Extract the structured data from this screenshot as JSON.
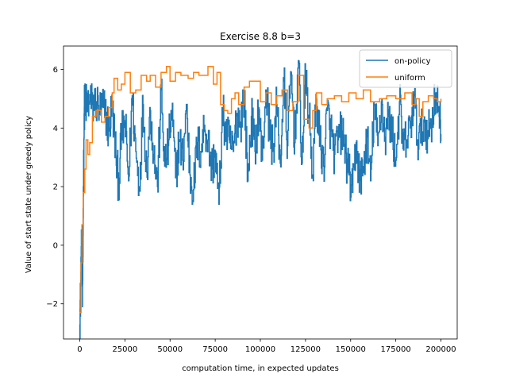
{
  "chart_data": {
    "type": "line",
    "title": "Exercise 8.8 b=3",
    "xlabel": "computation time, in expected updates",
    "ylabel": "Value of start state under greedy policy",
    "xlim": [
      -9000,
      209000
    ],
    "ylim": [
      -3.2,
      6.8
    ],
    "xticks": [
      0,
      25000,
      50000,
      75000,
      100000,
      125000,
      150000,
      175000,
      200000
    ],
    "yticks": [
      -2,
      0,
      2,
      4,
      6
    ],
    "grid": false,
    "legend_position": "top-right",
    "series": [
      {
        "name": "on-policy",
        "color": "#1f77b4",
        "style": "noisy",
        "x": [
          0,
          500,
          1000,
          1500,
          2000,
          2500,
          3000,
          4000,
          5000,
          7000,
          9000,
          11000,
          13000,
          15000,
          16000,
          18000,
          20000,
          21500,
          23000,
          25000,
          27000,
          29000,
          31000,
          33000,
          35000,
          37000,
          39000,
          41000,
          43000,
          45000,
          47000,
          49000,
          51000,
          53000,
          55000,
          57000,
          59000,
          61000,
          63000,
          65000,
          67000,
          69000,
          71000,
          73000,
          75000,
          77000,
          79000,
          81000,
          83000,
          85000,
          87000,
          89000,
          91000,
          93000,
          95000,
          97000,
          99000,
          101000,
          103000,
          105000,
          107000,
          109000,
          111000,
          113000,
          115000,
          117000,
          119000,
          121000,
          123000,
          125000,
          127000,
          129000,
          131000,
          133000,
          135000,
          137000,
          139000,
          141000,
          143000,
          145000,
          147000,
          149000,
          151000,
          153000,
          155000,
          157000,
          159000,
          161000,
          163000,
          165000,
          167000,
          169000,
          171000,
          173000,
          175000,
          177000,
          179000,
          181000,
          183000,
          185000,
          187000,
          189000,
          191000,
          193000,
          195000,
          197000,
          199000,
          200000
        ],
        "y": [
          -2.7,
          -1.5,
          0.2,
          -2.1,
          2.0,
          4.7,
          4.8,
          4.8,
          4.9,
          4.8,
          4.9,
          4.6,
          4.7,
          4.3,
          3.9,
          4.8,
          3.0,
          2.1,
          3.8,
          4.2,
          2.2,
          5.1,
          3.2,
          2.0,
          4.8,
          2.5,
          4.6,
          3.1,
          2.0,
          5.3,
          2.7,
          3.4,
          4.6,
          2.3,
          3.6,
          2.9,
          4.8,
          2.4,
          1.9,
          3.5,
          3.2,
          4.1,
          3.6,
          2.6,
          3.2,
          1.4,
          4.5,
          3.8,
          3.5,
          3.2,
          4.5,
          4.2,
          5.2,
          2.2,
          4.4,
          3.2,
          4.7,
          2.9,
          5.3,
          4.0,
          3.2,
          4.8,
          2.8,
          5.6,
          3.4,
          5.9,
          3.5,
          6.3,
          2.8,
          5.8,
          4.3,
          2.4,
          5.0,
          3.5,
          2.7,
          4.6,
          3.9,
          3.1,
          3.6,
          3.9,
          3.2,
          2.4,
          1.8,
          3.5,
          2.2,
          2.6,
          3.7,
          2.2,
          4.8,
          3.4,
          4.9,
          3.7,
          4.4,
          3.8,
          2.9,
          4.9,
          3.3,
          3.6,
          4.0,
          5.1,
          3.6,
          3.8,
          4.2,
          3.8,
          4.3,
          5.2,
          4.4,
          3.8
        ]
      },
      {
        "name": "uniform",
        "color": "#ff7f0e",
        "style": "step",
        "x": [
          0,
          700,
          1200,
          2000,
          2800,
          3500,
          4500,
          5500,
          7000,
          9000,
          12000,
          14000,
          16000,
          18000,
          19000,
          21000,
          23000,
          25000,
          28000,
          31000,
          34000,
          37000,
          39000,
          42000,
          45000,
          48000,
          50000,
          53000,
          56000,
          60000,
          63000,
          66000,
          71000,
          74000,
          76000,
          78000,
          80000,
          82000,
          84000,
          86000,
          88000,
          91000,
          94000,
          97000,
          100000,
          103000,
          106000,
          109000,
          112000,
          115000,
          118000,
          121000,
          124000,
          127000,
          129000,
          131000,
          134000,
          137000,
          141000,
          145000,
          149000,
          153000,
          157000,
          161000,
          166000,
          170000,
          175000,
          180000,
          184000,
          186000,
          188000,
          190000,
          193000,
          196000,
          198000,
          200000
        ],
        "y": [
          -2.3,
          -0.6,
          0.7,
          1.8,
          2.6,
          3.6,
          3.1,
          3.5,
          4.4,
          4.6,
          4.2,
          4.4,
          4.7,
          5.2,
          5.7,
          5.3,
          5.5,
          5.9,
          5.2,
          5.3,
          5.8,
          5.6,
          5.8,
          5.4,
          5.9,
          6.1,
          5.6,
          5.9,
          5.8,
          5.7,
          5.9,
          5.8,
          6.1,
          5.5,
          5.9,
          4.8,
          4.6,
          4.5,
          5.0,
          5.2,
          4.8,
          5.4,
          5.6,
          5.6,
          4.9,
          5.2,
          4.8,
          5.1,
          5.3,
          4.6,
          4.9,
          5.8,
          4.3,
          4.0,
          4.6,
          5.2,
          4.8,
          5.0,
          5.1,
          4.9,
          5.2,
          5.0,
          5.3,
          4.9,
          5.0,
          5.1,
          5.0,
          5.2,
          4.8,
          5.0,
          4.4,
          4.9,
          5.1,
          5.0,
          4.9,
          5.0
        ]
      }
    ]
  }
}
